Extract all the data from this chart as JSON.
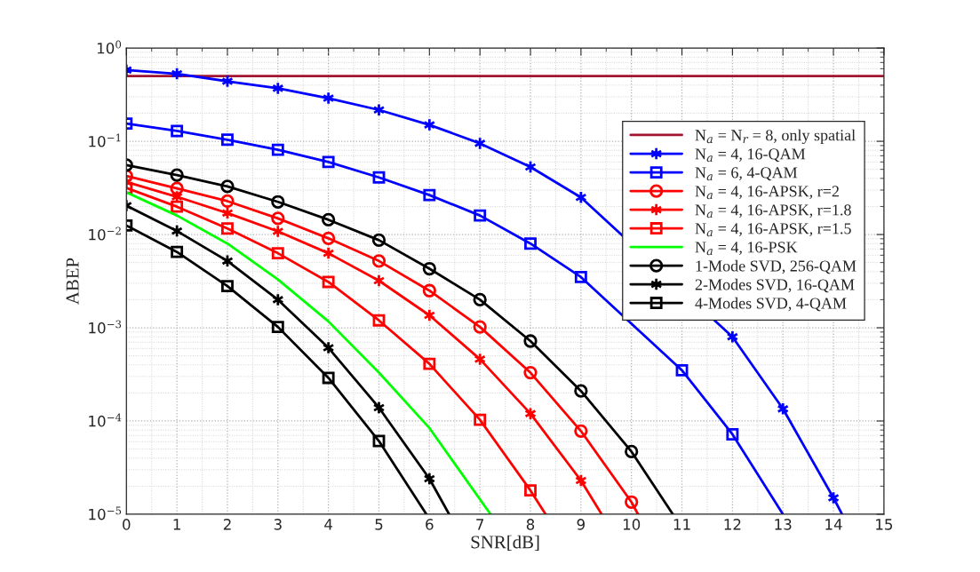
{
  "chart_data": {
    "type": "line",
    "xlabel": "SNR[dB]",
    "ylabel": "ABEP",
    "log": "y",
    "grid": true,
    "legend": "top right",
    "xlim": [
      0,
      15
    ],
    "xticks": [
      0,
      1,
      2,
      3,
      4,
      5,
      6,
      7,
      8,
      9,
      10,
      11,
      12,
      13,
      14,
      15
    ],
    "ylim": [
      1e-05,
      1
    ],
    "yticks": [
      {
        "value": 1e-05,
        "label": "10$^{−5}$"
      },
      {
        "value": 0.0001,
        "label": "10$^{−4}$"
      },
      {
        "value": 0.001,
        "label": "10$^{−3}$"
      },
      {
        "value": 0.01,
        "label": "10$^{−2}$"
      },
      {
        "value": 0.1,
        "label": "10$^{−1}$"
      },
      {
        "value": 1,
        "label": "10$^{0}$"
      }
    ],
    "series": [
      {
        "name": "N$_{a}$ = N$_{r}$ = 8, only spatial",
        "color": "#a2142f",
        "marker": "none",
        "x": [
          0,
          15
        ],
        "values": [
          0.5,
          0.5
        ]
      },
      {
        "name": "N$_{a}$ = 4, 16-QAM",
        "color": "#0000ff",
        "marker": "cross",
        "x": [
          0,
          1,
          2,
          3,
          4,
          5,
          6,
          7,
          8,
          9,
          12,
          13,
          14,
          14.17
        ],
        "values": [
          0.58,
          0.53,
          0.44,
          0.37,
          0.29,
          0.217,
          0.15,
          0.095,
          0.053,
          0.025,
          0.0008,
          0.000135,
          1.5e-05,
          1e-05
        ]
      },
      {
        "name": "N$_{a}$ = 6, 4-QAM",
        "color": "#0000ff",
        "marker": "square",
        "x": [
          0,
          1,
          2,
          3,
          4,
          5,
          6,
          7,
          8,
          9,
          11,
          12,
          13
        ],
        "values": [
          0.155,
          0.129,
          0.104,
          0.081,
          0.06,
          0.041,
          0.0265,
          0.016,
          0.008,
          0.0035,
          0.00035,
          7.2e-05,
          1e-05
        ]
      },
      {
        "name": "N$_{a}$ = 4, 16-APSK, r=2",
        "color": "#ff0000",
        "marker": "circle",
        "x": [
          0,
          1,
          2,
          3,
          4,
          5,
          6,
          7,
          8,
          9,
          10,
          10.13
        ],
        "values": [
          0.0424,
          0.0312,
          0.0228,
          0.0149,
          0.0091,
          0.0052,
          0.0025,
          0.00102,
          0.00033,
          7.8e-05,
          1.35e-05,
          1e-05
        ]
      },
      {
        "name": "N$_{a}$ = 4, 16-APSK, r=1.8",
        "color": "#ff0000",
        "marker": "cross",
        "x": [
          0,
          1,
          2,
          3,
          4,
          5,
          6,
          7,
          8,
          9,
          9.41
        ],
        "values": [
          0.0366,
          0.0254,
          0.017,
          0.0108,
          0.0063,
          0.0032,
          0.00136,
          0.00046,
          0.00012,
          2.3e-05,
          1e-05
        ]
      },
      {
        "name": "N$_{a}$ = 4, 16-APSK, r=1.5",
        "color": "#ff0000",
        "marker": "square",
        "x": [
          0,
          1,
          2,
          3,
          4,
          5,
          6,
          7,
          8,
          8.3
        ],
        "values": [
          0.0316,
          0.0199,
          0.0116,
          0.0063,
          0.0031,
          0.0012,
          0.00041,
          0.000103,
          1.8e-05,
          1e-05
        ]
      },
      {
        "name": "N$_{a}$ = 4, 16-PSK",
        "color": "#00ff00",
        "marker": "none",
        "x": [
          0,
          1,
          2,
          3,
          4,
          5,
          6,
          7.21
        ],
        "values": [
          0.0283,
          0.016,
          0.008,
          0.0033,
          0.00117,
          0.00033,
          8.4e-05,
          1e-05
        ]
      },
      {
        "name": "1-Mode SVD, 256-QAM",
        "color": "#000000",
        "marker": "circle",
        "x": [
          0,
          1,
          2,
          3,
          4,
          5,
          6,
          7,
          8,
          9,
          10,
          10.82
        ],
        "values": [
          0.0555,
          0.0434,
          0.0328,
          0.0224,
          0.0144,
          0.0087,
          0.0043,
          0.002,
          0.00072,
          0.00021,
          4.7e-05,
          1e-05
        ]
      },
      {
        "name": "2-Modes SVD, 16-QAM",
        "color": "#000000",
        "marker": "cross",
        "x": [
          0,
          1,
          2,
          3,
          4,
          5,
          6,
          6.39
        ],
        "values": [
          0.0204,
          0.0109,
          0.0052,
          0.002,
          0.00061,
          0.000139,
          2.4e-05,
          1e-05
        ]
      },
      {
        "name": "4-Modes SVD, 4-QAM",
        "color": "#000000",
        "marker": "square",
        "x": [
          0,
          1,
          2,
          3,
          4,
          5,
          5.94
        ],
        "values": [
          0.0125,
          0.0065,
          0.0028,
          0.00102,
          0.00029,
          6.1e-05,
          1e-05
        ]
      }
    ]
  }
}
